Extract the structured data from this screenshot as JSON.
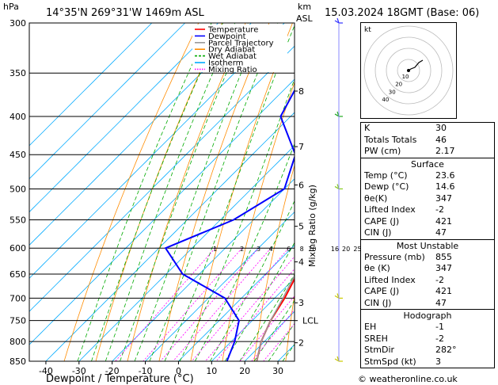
{
  "header": {
    "hpa_label": "hPa",
    "location": "14°35'N  269°31'W  1469m  ASL",
    "km_label": "km",
    "asl_label": "ASL",
    "datetime": "15.03.2024  18GMT  (Base: 06)",
    "mixing_ratio_label": "Mixing Ratio (g/kg)",
    "copyright": "© weatheronline.co.uk"
  },
  "legend": [
    {
      "label": "Temperature",
      "color": "#ff0000"
    },
    {
      "label": "Dewpoint",
      "color": "#0000ff"
    },
    {
      "label": "Parcel Trajectory",
      "color": "#999999"
    },
    {
      "label": "Dry Adiabat",
      "color": "#ff8c00"
    },
    {
      "label": "Wet Adiabat",
      "color": "#00aa00"
    },
    {
      "label": "Isotherm",
      "color": "#00aaff"
    },
    {
      "label": "Mixing Ratio",
      "color": "#ff00ff"
    }
  ],
  "chart_data": {
    "type": "line",
    "title": "",
    "xlabel": "Dewpoint / Temperature (°C)",
    "ylabel": "hPa",
    "xlim": [
      -45,
      35
    ],
    "pressure_levels": [
      300,
      350,
      400,
      450,
      500,
      550,
      600,
      650,
      700,
      750,
      800,
      850
    ],
    "x_ticks": [
      -40,
      -30,
      -20,
      -10,
      0,
      10,
      20,
      30
    ],
    "km_ticks": [
      {
        "label": "8",
        "p": 370
      },
      {
        "label": "7",
        "p": 439
      },
      {
        "label": "6",
        "p": 494
      },
      {
        "label": "5",
        "p": 561
      },
      {
        "label": "4",
        "p": 626
      },
      {
        "label": "3",
        "p": 710
      },
      {
        "label": "LCL",
        "p": 750
      },
      {
        "label": "2",
        "p": 803
      }
    ],
    "mixing_ratio_labels": [
      "1",
      "2",
      "3",
      "4",
      "6",
      "8",
      "10",
      "16",
      "20",
      "25"
    ],
    "mixing_ratio_values": [
      1,
      2,
      3,
      4,
      6,
      8,
      10,
      16,
      20,
      25
    ],
    "series": [
      {
        "name": "Temperature",
        "color": "#ff0000",
        "points": [
          [
            300,
            -31
          ],
          [
            350,
            -23
          ],
          [
            400,
            -16
          ],
          [
            450,
            -10
          ],
          [
            500,
            -5
          ],
          [
            550,
            0
          ],
          [
            600,
            5
          ],
          [
            650,
            9.5
          ],
          [
            700,
            13
          ],
          [
            750,
            15.5
          ],
          [
            800,
            19
          ],
          [
            850,
            23.6
          ]
        ]
      },
      {
        "name": "Dewpoint",
        "color": "#0000ff",
        "points": [
          [
            300,
            -48
          ],
          [
            350,
            -49
          ],
          [
            400,
            -43
          ],
          [
            450,
            -27
          ],
          [
            500,
            -20
          ],
          [
            550,
            -26
          ],
          [
            600,
            -38
          ],
          [
            650,
            -25
          ],
          [
            700,
            -5
          ],
          [
            750,
            6
          ],
          [
            800,
            11
          ],
          [
            850,
            14.6
          ]
        ]
      },
      {
        "name": "Parcel Trajectory",
        "color": "#999999",
        "points": [
          [
            300,
            -27
          ],
          [
            350,
            -19
          ],
          [
            400,
            -13
          ],
          [
            450,
            -8
          ],
          [
            500,
            -3
          ],
          [
            550,
            1
          ],
          [
            600,
            5
          ],
          [
            650,
            9
          ],
          [
            700,
            12.5
          ],
          [
            750,
            15.5
          ],
          [
            800,
            19
          ],
          [
            850,
            23.6
          ]
        ]
      }
    ]
  },
  "indices": [
    {
      "rows": [
        {
          "label": "K",
          "value": "30"
        },
        {
          "label": "Totals Totals",
          "value": "46"
        },
        {
          "label": "PW (cm)",
          "value": "2.17"
        }
      ]
    },
    {
      "title": "Surface",
      "rows": [
        {
          "label": "Temp (°C)",
          "value": "23.6"
        },
        {
          "label": "Dewp (°C)",
          "value": "14.6"
        },
        {
          "label": "θe(K)",
          "value": "347"
        },
        {
          "label": "Lifted Index",
          "value": "-2"
        },
        {
          "label": "CAPE (J)",
          "value": "421"
        },
        {
          "label": "CIN (J)",
          "value": "47"
        }
      ]
    },
    {
      "title": "Most Unstable",
      "rows": [
        {
          "label": "Pressure (mb)",
          "value": "855"
        },
        {
          "label": "θe (K)",
          "value": "347"
        },
        {
          "label": "Lifted Index",
          "value": "-2"
        },
        {
          "label": "CAPE (J)",
          "value": "421"
        },
        {
          "label": "CIN (J)",
          "value": "47"
        }
      ]
    },
    {
      "title": "Hodograph",
      "rows": [
        {
          "label": "EH",
          "value": "-1"
        },
        {
          "label": "SREH",
          "value": "-2"
        },
        {
          "label": "StmDir",
          "value": "282°"
        },
        {
          "label": "StmSpd (kt)",
          "value": "3"
        }
      ]
    }
  ],
  "hodograph": {
    "unit_label": "kt",
    "ring_labels": [
      "10",
      "20",
      "30",
      "40"
    ]
  }
}
